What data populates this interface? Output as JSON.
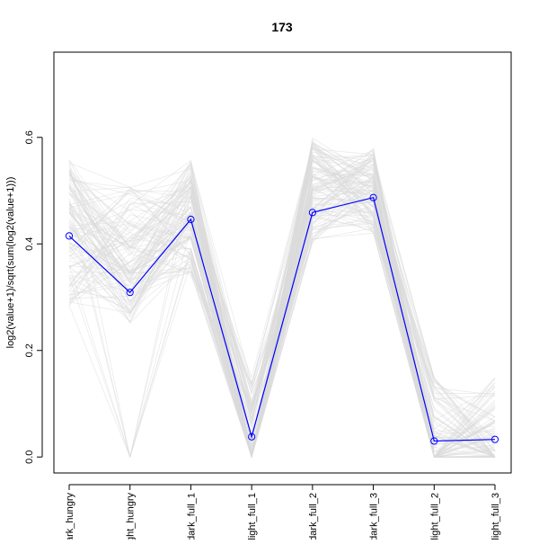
{
  "chart_data": {
    "type": "line",
    "title": "173",
    "xlabel": "",
    "ylabel": "log2(value+1)/sqrt(sum(log2(value+1)))",
    "categories": [
      "dark_hungry",
      "light_hungry",
      "dark_full_1",
      "light_full_1",
      "dark_full_2",
      "dark_full_3",
      "light_full_2",
      "light_full_3"
    ],
    "y_ticks": [
      0.0,
      0.2,
      0.4,
      0.6
    ],
    "y_tick_labels": [
      "0.0",
      "0.2",
      "0.4",
      "0.6"
    ],
    "ylim": [
      -0.03,
      0.76
    ],
    "grid": false,
    "legend": "none",
    "series": [
      {
        "values": [
          0.415,
          0.309,
          0.446,
          0.038,
          0.459,
          0.487,
          0.03,
          0.033
        ],
        "color": "#0000FF",
        "marker": "open-circle"
      }
    ],
    "background_series_color": "#DADADA",
    "background_series_description_count": 120
  }
}
